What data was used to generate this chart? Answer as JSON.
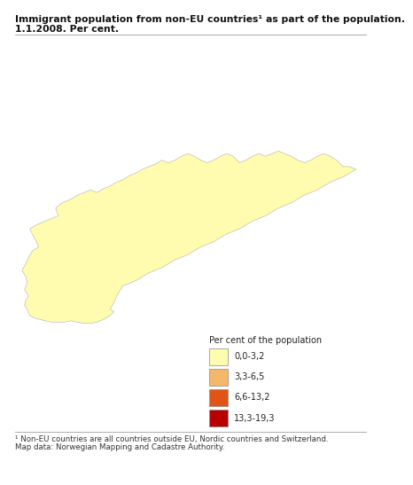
{
  "title_line1": "Immigrant population from non-EU countries¹ as part of the population.",
  "title_line2": "1.1.2008. Per cent.",
  "footnote_line1": "¹ Non-EU countries are all countries outside EU, Nordic countries and Switzerland.",
  "footnote_line2": "Map data: Norwegian Mapping and Cadastre Authority.",
  "legend_title": "Per cent of the population",
  "legend_items": [
    {
      "label": "0,0-3,2",
      "color": "#FFFCB0"
    },
    {
      "label": "3,3-6,5",
      "color": "#F5B86B"
    },
    {
      "label": "6,6-13,2",
      "color": "#E05515"
    },
    {
      "label": "13,3-19,3",
      "color": "#B80000"
    }
  ],
  "background_color": "#ffffff",
  "title_fontsize": 7.8,
  "footnote_fontsize": 6.2,
  "legend_fontsize": 7.0,
  "legend_title_fontsize": 7.0,
  "divider_color": "#aaaaaa",
  "map_xlim": [
    4.0,
    31.5
  ],
  "map_ylim": [
    57.8,
    71.5
  ],
  "norway_fill": "#FFFCB0",
  "norway_edge": "#999999",
  "norway_edge_width": 0.3
}
